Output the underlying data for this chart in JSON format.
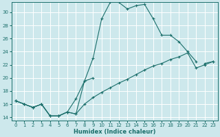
{
  "xlabel": "Humidex (Indice chaleur)",
  "bg_color": "#cde8ec",
  "grid_color": "#ffffff",
  "line_color": "#1a6e6a",
  "xlim": [
    -0.5,
    23.5
  ],
  "ylim": [
    13.5,
    31.5
  ],
  "yticks": [
    14,
    16,
    18,
    20,
    22,
    24,
    26,
    28,
    30
  ],
  "xticks": [
    0,
    1,
    2,
    3,
    4,
    5,
    6,
    7,
    8,
    9,
    10,
    11,
    12,
    13,
    14,
    15,
    16,
    17,
    18,
    19,
    20,
    21,
    22,
    23
  ],
  "line1_x": [
    0,
    1,
    2,
    3,
    4,
    5,
    6,
    7,
    8,
    9,
    10,
    11,
    12,
    13,
    14,
    15,
    16,
    17,
    18,
    19,
    20,
    21
  ],
  "line1_y": [
    16.5,
    16.0,
    15.5,
    16.0,
    14.2,
    14.2,
    14.8,
    14.5,
    19.5,
    23.0,
    29.0,
    31.5,
    31.5,
    30.5,
    31.0,
    31.2,
    29.0,
    26.5,
    26.5,
    25.5,
    24.0,
    22.5
  ],
  "line2_x": [
    0,
    1,
    2,
    3,
    4,
    5,
    6,
    7,
    8,
    9,
    22,
    23
  ],
  "line2_y": [
    16.5,
    16.0,
    15.5,
    16.0,
    14.2,
    14.2,
    14.8,
    16.8,
    19.5,
    20.0,
    22.2,
    22.5
  ],
  "line3_x": [
    0,
    1,
    2,
    3,
    4,
    5,
    6,
    7,
    8,
    9,
    10,
    11,
    12,
    13,
    14,
    15,
    16,
    17,
    18,
    19,
    20,
    21,
    22,
    23
  ],
  "line3_y": [
    16.5,
    16.0,
    15.5,
    16.0,
    14.2,
    14.2,
    14.8,
    14.5,
    16.0,
    17.0,
    17.8,
    18.5,
    19.2,
    19.8,
    20.5,
    21.2,
    21.8,
    22.2,
    22.8,
    23.2,
    23.8,
    21.5,
    22.0,
    22.5
  ]
}
